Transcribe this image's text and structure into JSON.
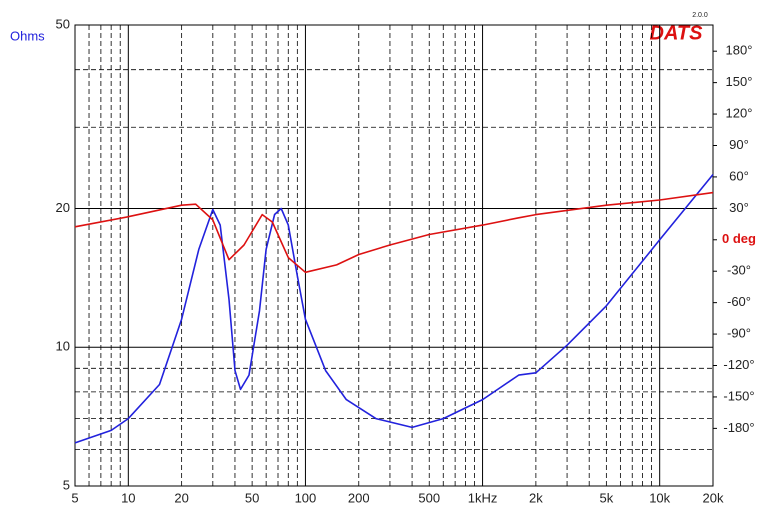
{
  "chart_data": {
    "type": "line",
    "y_label": "Ohms",
    "brand": "DATS",
    "version": "2.0.0",
    "xlog": true,
    "ylog": true,
    "xlim": [
      5,
      20000
    ],
    "ylim": [
      5,
      50
    ],
    "y2lim": [
      -235,
      205
    ],
    "xticks": [
      5,
      10,
      20,
      50,
      100,
      200,
      500,
      {
        "value": 1000,
        "label": "1kHz"
      },
      {
        "value": 2000,
        "label": "2k"
      },
      {
        "value": 5000,
        "label": "5k"
      },
      {
        "value": 10000,
        "label": "10k"
      },
      {
        "value": 20000,
        "label": "20k"
      }
    ],
    "xminor": [
      6,
      7,
      8,
      9,
      30,
      40,
      60,
      70,
      80,
      90,
      300,
      400,
      600,
      700,
      800,
      900,
      3000,
      4000,
      6000,
      7000,
      8000,
      9000
    ],
    "yticks": [
      5,
      10,
      20,
      50
    ],
    "yminor": [
      6,
      7,
      8,
      9,
      30,
      40
    ],
    "y2ticks": [
      {
        "value": 180,
        "label": "180°"
      },
      {
        "value": 150,
        "label": "150°"
      },
      {
        "value": 120,
        "label": "120°"
      },
      {
        "value": 90,
        "label": "90°"
      },
      {
        "value": 60,
        "label": "60°"
      },
      {
        "value": 30,
        "label": "30°"
      },
      {
        "value": 0,
        "label": "0 deg"
      },
      {
        "value": -30,
        "label": "-30°"
      },
      {
        "value": -60,
        "label": "-60°"
      },
      {
        "value": -90,
        "label": "-90°"
      },
      {
        "value": -120,
        "label": "-120°"
      },
      {
        "value": -150,
        "label": "-150°"
      },
      {
        "value": -180,
        "label": "-180°"
      }
    ],
    "series": [
      {
        "color": "#2222dd",
        "axis": "y",
        "x": [
          5,
          8,
          10,
          15,
          20,
          25,
          30,
          33,
          37,
          40,
          43,
          48,
          55,
          60,
          67,
          73,
          80,
          90,
          100,
          130,
          170,
          250,
          400,
          600,
          1000,
          1600,
          2000,
          3000,
          5000,
          10000,
          20000
        ],
        "values": [
          6.2,
          6.6,
          7.0,
          8.3,
          11.5,
          16.3,
          19.9,
          18.4,
          12.7,
          8.9,
          8.1,
          8.7,
          12.0,
          16.3,
          19.4,
          20.0,
          18.4,
          14.3,
          11.5,
          8.9,
          7.7,
          7.0,
          6.7,
          7.0,
          7.7,
          8.7,
          8.8,
          10.1,
          12.3,
          17.1,
          23.7
        ]
      },
      {
        "color": "#dd1111",
        "axis": "y2",
        "x": [
          5,
          10,
          20,
          24,
          30,
          37,
          45,
          57,
          65,
          80,
          100,
          150,
          200,
          300,
          500,
          1000,
          1600,
          2000,
          5000,
          10000,
          20000
        ],
        "values": [
          12.4,
          22,
          33,
          34,
          19,
          -19,
          -5,
          24,
          17,
          -17,
          -31,
          -24,
          -14,
          -5,
          5,
          14,
          21,
          24,
          33,
          38,
          45
        ]
      }
    ]
  }
}
